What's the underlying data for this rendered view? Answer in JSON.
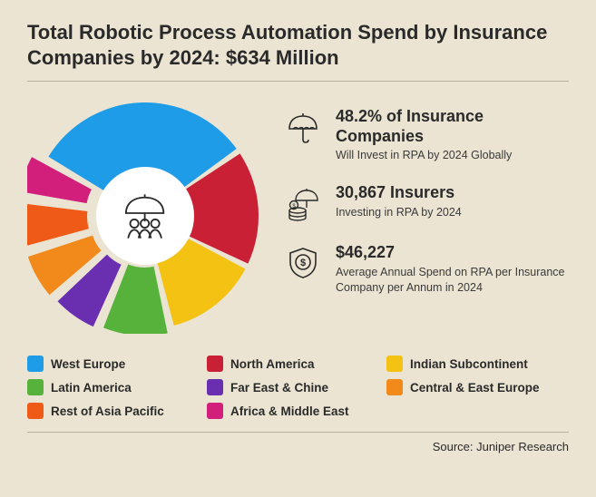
{
  "title": "Total Robotic Process Automation Spend by Insurance Companies by 2024: $634 Million",
  "chart": {
    "type": "donut",
    "background": "#ebe4d2",
    "inner_radius_ratio": 0.4,
    "outer_radius": 125,
    "gap_deg": 3,
    "center_fill": "#ffffff",
    "slices": [
      {
        "label": "West Europe",
        "color": "#1f9ce8",
        "value": 32,
        "pop": 0
      },
      {
        "label": "North America",
        "color": "#c92036",
        "value": 17,
        "pop": 0
      },
      {
        "label": "Indian Subcontinent",
        "color": "#f3c213",
        "value": 14,
        "pop": 0
      },
      {
        "label": "Latin America",
        "color": "#56b23b",
        "value": 10,
        "pop": 7
      },
      {
        "label": "Far East & Chine",
        "color": "#6a2fb0",
        "value": 7,
        "pop": 10
      },
      {
        "label": "Central & East Europe",
        "color": "#f18a1a",
        "value": 7,
        "pop": 12
      },
      {
        "label": "Rest of Asia Pacific",
        "color": "#ef5a17",
        "value": 7,
        "pop": 14
      },
      {
        "label": "Africa & Middle East",
        "color": "#d11f7b",
        "value": 6,
        "pop": 16
      }
    ]
  },
  "stats": [
    {
      "headline": "48.2% of Insurance Companies",
      "sub": "Will Invest in RPA by 2024 Globally",
      "icon": "umbrella-icon"
    },
    {
      "headline": "30,867 Insurers",
      "sub": "Investing in RPA by 2024",
      "icon": "umbrella-coins-icon"
    },
    {
      "headline": "$46,227",
      "sub": "Average Annual Spend on RPA per Insurance Company per Annum in 2024",
      "icon": "shield-dollar-icon"
    }
  ],
  "source": "Source: Juniper Research",
  "colors": {
    "bg": "#ebe4d2",
    "text": "#2a2a2a",
    "divider": "#b7b09e"
  }
}
